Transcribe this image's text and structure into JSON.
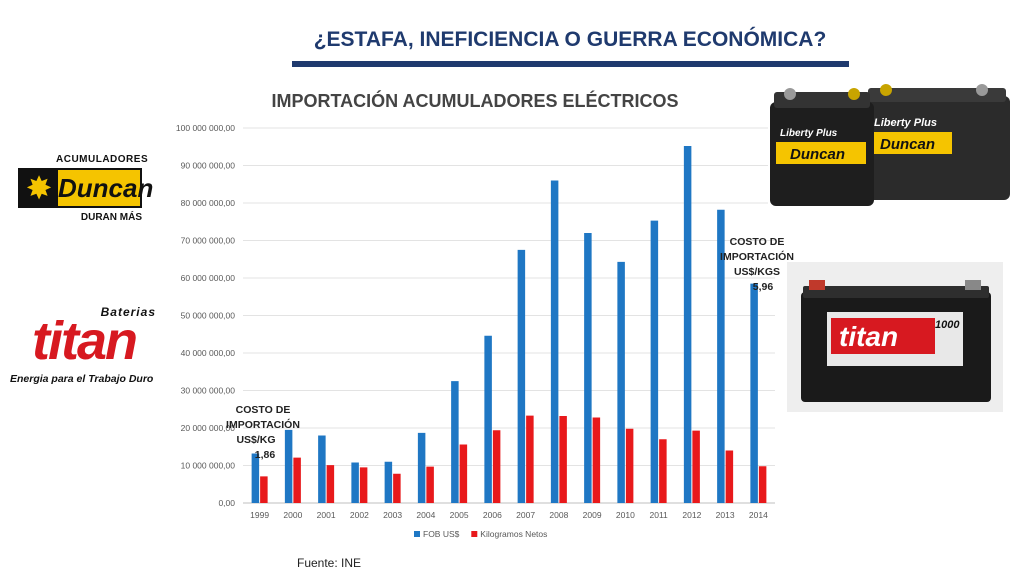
{
  "slide": {
    "title": "¿ESTAFA, INEFICIENCIA O GUERRA ECONÓMICA?",
    "source": "Fuente: INE"
  },
  "annotations": {
    "left": {
      "line1": "COSTO DE IMPORTACIÓN",
      "line2": "US$/KG",
      "value": "1,86"
    },
    "right": {
      "line1": "COSTO DE IMPORTACIÓN",
      "line2": "US$/KGS",
      "value": "5,96"
    }
  },
  "logos": {
    "duncan": {
      "top": "ACUMULADORES",
      "name": "Duncan",
      "bottom": "DURAN MÁS",
      "icon": "star-burst-icon"
    },
    "titan": {
      "top": "Baterias",
      "name": "titan",
      "bottom": "Energia para el Trabajo Duro"
    }
  },
  "photos": {
    "battery1": {
      "brand": "Duncan",
      "label": "Liberty Plus"
    },
    "battery2": {
      "brand": "titan",
      "label": "1000"
    }
  },
  "colors": {
    "title": "#1f3a6e",
    "fob": "#1f77c4",
    "kg": "#e8191b"
  },
  "chart_data": {
    "type": "bar",
    "title": "IMPORTACIÓN ACUMULADORES ELÉCTRICOS",
    "categories": [
      "1999",
      "2000",
      "2001",
      "2002",
      "2003",
      "2004",
      "2005",
      "2006",
      "2007",
      "2008",
      "2009",
      "2010",
      "2011",
      "2012",
      "2013",
      "2014"
    ],
    "series": [
      {
        "name": "FOB US$",
        "values": [
          13200000,
          19500000,
          18000000,
          10800000,
          11000000,
          18700000,
          32500000,
          44600000,
          67500000,
          86000000,
          72000000,
          64300000,
          75300000,
          95200000,
          78200000,
          58500000
        ]
      },
      {
        "name": "Kilogramos Netos",
        "values": [
          7100000,
          12100000,
          10100000,
          9500000,
          7800000,
          9700000,
          15600000,
          19400000,
          23300000,
          23200000,
          22800000,
          19800000,
          17000000,
          19300000,
          14000000,
          9800000
        ]
      }
    ],
    "ylim": [
      0,
      100000000
    ],
    "yticks": [
      "0,00",
      "10 000 000,00",
      "20 000 000,00",
      "30 000 000,00",
      "40 000 000,00",
      "50 000 000,00",
      "60 000 000,00",
      "70 000 000,00",
      "80 000 000,00",
      "90 000 000,00",
      "100 000 000,00"
    ],
    "grid": true,
    "legend": "bottom"
  }
}
